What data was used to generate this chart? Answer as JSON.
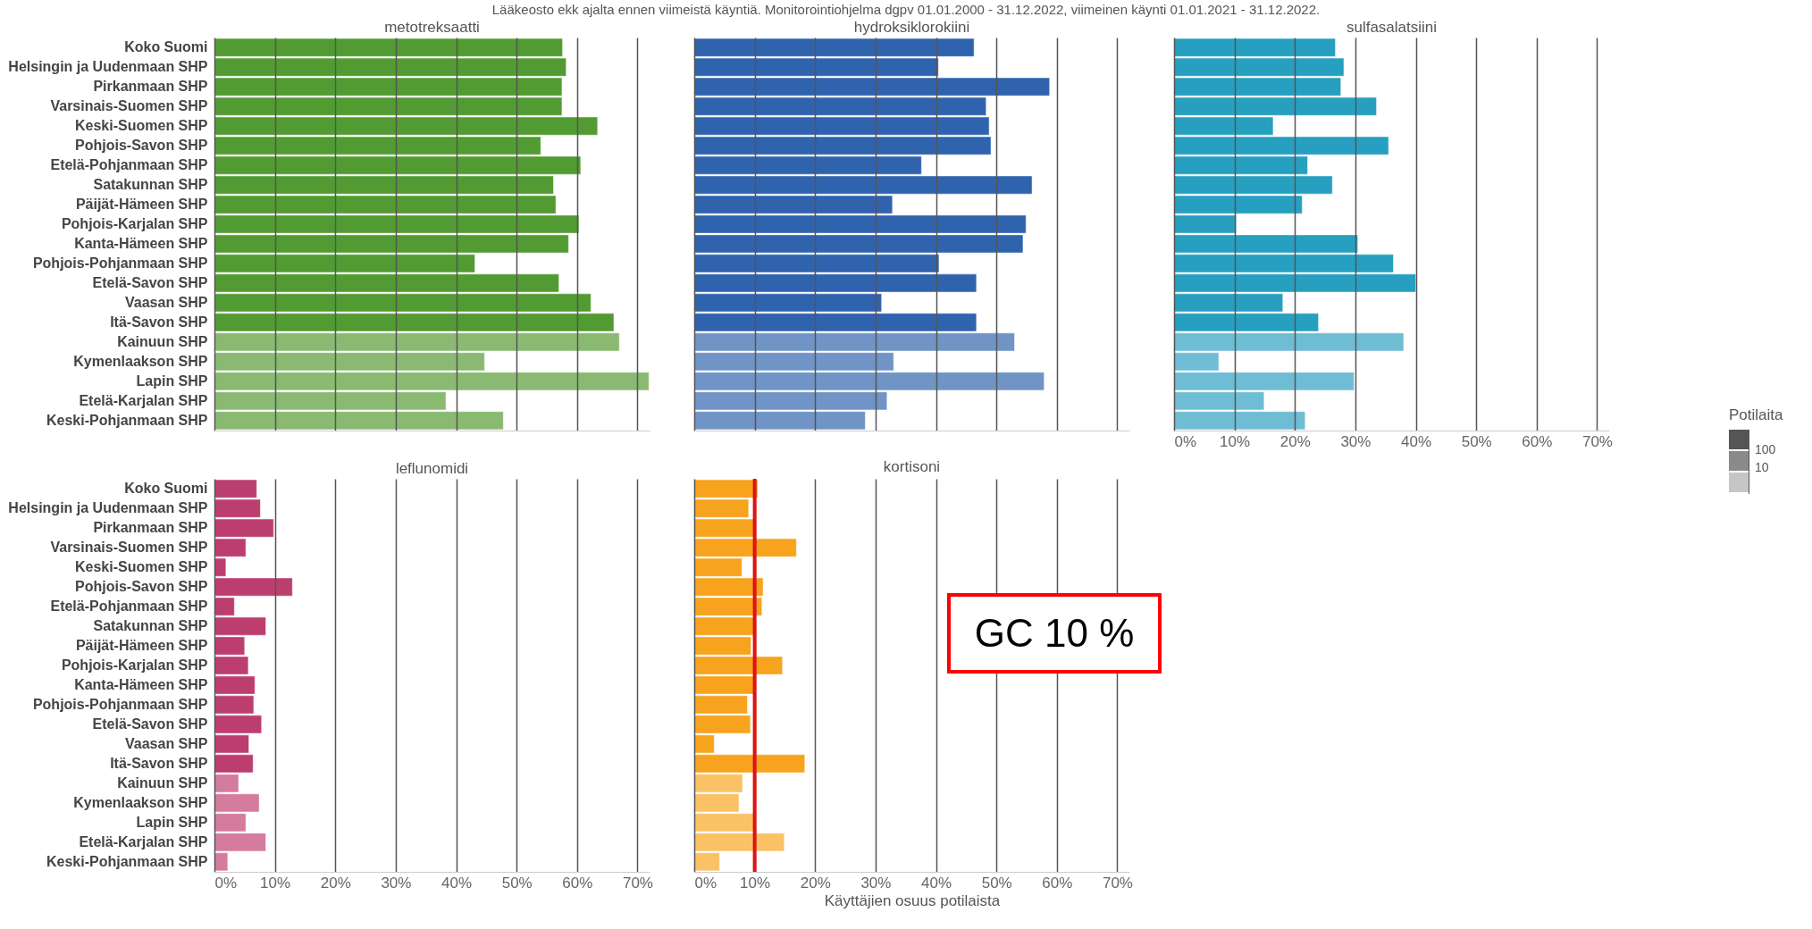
{
  "chart_data": [
    {
      "type": "bar",
      "orientation": "horizontal",
      "title": "metotreksaatti",
      "subtitle": "Lääkeosto ekk ajalta ennen viimeistä käyntiä. Monitorointiohjelma dgpv 01.01.2000 - 31.12.2022, viimeinen käynti 01.01.2021 - 31.12.2022.",
      "tick_labels": "y",
      "grid": "x",
      "categories": [
        "Koko Suomi",
        "Helsingin ja Uudenmaan SHP",
        "Pirkanmaan SHP",
        "Varsinais-Suomen SHP",
        "Keski-Suomen SHP",
        "Pohjois-Savon SHP",
        "Etelä-Pohjanmaan SHP",
        "Satakunnan SHP",
        "Päijät-Hämeen SHP",
        "Pohjois-Karjalan SHP",
        "Kanta-Hämeen SHP",
        "Pohjois-Pohjanmaan SHP",
        "Etelä-Savon SHP",
        "Vaasan SHP",
        "Itä-Savon SHP",
        "Kainuun SHP",
        "Kymenlaakson SHP",
        "Lapin SHP",
        "Etelä-Karjalan SHP",
        "Keski-Pohjanmaan SHP"
      ],
      "values": [
        57.6,
        58.2,
        57.5,
        57.5,
        63.4,
        54.0,
        60.6,
        56.1,
        56.5,
        60.3,
        58.6,
        43.1,
        57.0,
        62.3,
        66.1,
        67.0,
        44.7,
        71.9,
        38.3,
        47.8
      ],
      "colors": [
        "#529b32",
        "#529b32",
        "#529b32",
        "#529b32",
        "#529b32",
        "#529b32",
        "#529b32",
        "#529b32",
        "#529b32",
        "#529b32",
        "#529b32",
        "#529b32",
        "#529b32",
        "#529b32",
        "#529b32",
        "#8aba72",
        "#8aba72",
        "#8aba72",
        "#8aba72",
        "#8aba72"
      ],
      "xlim": [
        0,
        72
      ],
      "xticks": [
        {
          "value": 0,
          "label": null
        },
        {
          "value": 10,
          "label": null
        },
        {
          "value": 20,
          "label": null
        },
        {
          "value": 30,
          "label": null
        },
        {
          "value": 40,
          "label": null
        },
        {
          "value": 50,
          "label": null
        },
        {
          "value": 60,
          "label": null
        },
        {
          "value": 70,
          "label": null
        }
      ]
    },
    {
      "type": "bar",
      "orientation": "horizontal",
      "title": "hydroksiklorokiini",
      "tick_labels": false,
      "grid": "x",
      "categories": [
        null,
        null,
        null,
        null,
        null,
        null,
        null,
        null,
        null,
        null,
        null,
        null,
        null,
        null,
        null,
        null,
        null,
        null,
        null,
        null
      ],
      "values": [
        46.3,
        40.4,
        58.8,
        48.3,
        48.8,
        49.1,
        37.6,
        55.9,
        32.8,
        54.9,
        54.4,
        40.5,
        46.7,
        31.0,
        46.7,
        53.0,
        33.0,
        57.9,
        31.9,
        28.3
      ],
      "colors": [
        "#3063ad",
        "#3063ad",
        "#3063ad",
        "#3063ad",
        "#3063ad",
        "#3063ad",
        "#3063ad",
        "#3063ad",
        "#3063ad",
        "#3063ad",
        "#3063ad",
        "#3063ad",
        "#3063ad",
        "#3063ad",
        "#3063ad",
        "#7094c6",
        "#7094c6",
        "#7094c6",
        "#7094c6",
        "#7094c6"
      ],
      "xlim": [
        0,
        72
      ],
      "xticks": [
        {
          "value": 0,
          "label": null
        },
        {
          "value": 10,
          "label": null
        },
        {
          "value": 20,
          "label": null
        },
        {
          "value": 30,
          "label": null
        },
        {
          "value": 40,
          "label": null
        },
        {
          "value": 50,
          "label": null
        },
        {
          "value": 60,
          "label": null
        },
        {
          "value": 70,
          "label": null
        }
      ]
    },
    {
      "type": "bar",
      "orientation": "horizontal",
      "title": "sulfasalatsiini",
      "tick_labels": "x",
      "grid": "x",
      "legend_title": "Potilaita",
      "annotations": [
        "100",
        "10"
      ],
      "categories": [
        null,
        null,
        null,
        null,
        null,
        null,
        null,
        null,
        null,
        null,
        null,
        null,
        null,
        null,
        null,
        null,
        null,
        null,
        null,
        null
      ],
      "values": [
        26.7,
        28.1,
        27.6,
        33.5,
        16.4,
        35.5,
        22.1,
        26.2,
        21.2,
        10.3,
        30.4,
        36.3,
        40.0,
        18.0,
        23.9,
        38.0,
        7.4,
        29.8,
        14.9,
        21.7
      ],
      "colors": [
        "#279fc0",
        "#279fc0",
        "#279fc0",
        "#279fc0",
        "#279fc0",
        "#279fc0",
        "#279fc0",
        "#279fc0",
        "#279fc0",
        "#279fc0",
        "#279fc0",
        "#279fc0",
        "#279fc0",
        "#279fc0",
        "#279fc0",
        "#6ebdd5",
        "#6ebdd5",
        "#6ebdd5",
        "#6ebdd5",
        "#6ebdd5"
      ],
      "xlim": [
        0,
        72
      ],
      "xticks": [
        {
          "value": 0,
          "label": "0%"
        },
        {
          "value": 10,
          "label": "10%"
        },
        {
          "value": 20,
          "label": "20%"
        },
        {
          "value": 30,
          "label": "30%"
        },
        {
          "value": 40,
          "label": "40%"
        },
        {
          "value": 50,
          "label": "50%"
        },
        {
          "value": 60,
          "label": "60%"
        },
        {
          "value": 70,
          "label": "70%"
        }
      ]
    },
    {
      "type": "bar",
      "orientation": "horizontal",
      "title": "leflunomidi",
      "grid": "x",
      "categories": [
        "Koko Suomi",
        "Helsingin ja Uudenmaan SHP",
        "Pirkanmaan SHP",
        "Varsinais-Suomen SHP",
        "Keski-Suomen SHP",
        "Pohjois-Savon SHP",
        "Etelä-Pohjanmaan SHP",
        "Satakunnan SHP",
        "Päijät-Hämeen SHP",
        "Pohjois-Karjalan SHP",
        "Kanta-Hämeen SHP",
        "Pohjois-Pohjanmaan SHP",
        "Etelä-Savon SHP",
        "Vaasan SHP",
        "Itä-Savon SHP",
        "Kainuun SHP",
        "Kymenlaakson SHP",
        "Lapin SHP",
        "Etelä-Karjalan SHP",
        "Keski-Pohjanmaan SHP"
      ],
      "values": [
        7.0,
        7.6,
        9.8,
        5.2,
        1.9,
        12.9,
        3.3,
        8.5,
        5.0,
        5.6,
        6.7,
        6.5,
        7.8,
        5.7,
        6.4,
        4.0,
        7.4,
        5.2,
        8.5,
        2.2
      ],
      "colors": [
        "#bc3e6f",
        "#bc3e6f",
        "#bc3e6f",
        "#bc3e6f",
        "#bc3e6f",
        "#bc3e6f",
        "#bc3e6f",
        "#bc3e6f",
        "#bc3e6f",
        "#bc3e6f",
        "#bc3e6f",
        "#bc3e6f",
        "#bc3e6f",
        "#bc3e6f",
        "#bc3e6f",
        "#d57b9d",
        "#d57b9d",
        "#d57b9d",
        "#d57b9d",
        "#d57b9d"
      ],
      "xlim": [
        0,
        72
      ],
      "xticks": [
        {
          "value": 0,
          "label": "0%"
        },
        {
          "value": 10,
          "label": "10%"
        },
        {
          "value": 20,
          "label": "20%"
        },
        {
          "value": 30,
          "label": "30%"
        },
        {
          "value": 40,
          "label": "40%"
        },
        {
          "value": 50,
          "label": "50%"
        },
        {
          "value": 60,
          "label": "60%"
        },
        {
          "value": 70,
          "label": "70%"
        }
      ]
    },
    {
      "type": "bar",
      "orientation": "horizontal",
      "title": "kortisoni",
      "xlabel": "Käyttäjien osuus potilaista",
      "tick_labels": "x",
      "grid": "x",
      "categories": [
        null,
        null,
        null,
        null,
        null,
        null,
        null,
        null,
        null,
        null,
        null,
        null,
        null,
        null,
        null,
        null,
        null,
        null,
        null,
        null
      ],
      "values": [
        10.5,
        9.0,
        10.0,
        16.9,
        7.9,
        11.4,
        11.2,
        10.0,
        9.4,
        14.6,
        10.0,
        8.8,
        9.3,
        3.3,
        18.3,
        8.0,
        7.4,
        10.0,
        14.9,
        4.2
      ],
      "colors": [
        "#f7a31d",
        "#f7a31d",
        "#f7a31d",
        "#f7a31d",
        "#f7a31d",
        "#f7a31d",
        "#f7a31d",
        "#f7a31d",
        "#f7a31d",
        "#f7a31d",
        "#f7a31d",
        "#f7a31d",
        "#f7a31d",
        "#f7a31d",
        "#f7a31d",
        "#fac265",
        "#fac265",
        "#fac265",
        "#fac265",
        "#fac265"
      ],
      "ref_lines": [
        {
          "axis": "x",
          "value": 10,
          "color": "#ff0000"
        }
      ],
      "annotations": [
        "GC 10 %"
      ],
      "xlim": [
        0,
        72
      ],
      "xticks": [
        {
          "value": 0,
          "label": "0%"
        },
        {
          "value": 10,
          "label": "10%"
        },
        {
          "value": 20,
          "label": "20%"
        },
        {
          "value": 30,
          "label": "30%"
        },
        {
          "value": 40,
          "label": "40%"
        },
        {
          "value": 50,
          "label": "50%"
        },
        {
          "value": 60,
          "label": "60%"
        },
        {
          "value": 70,
          "label": "70%"
        }
      ]
    }
  ]
}
